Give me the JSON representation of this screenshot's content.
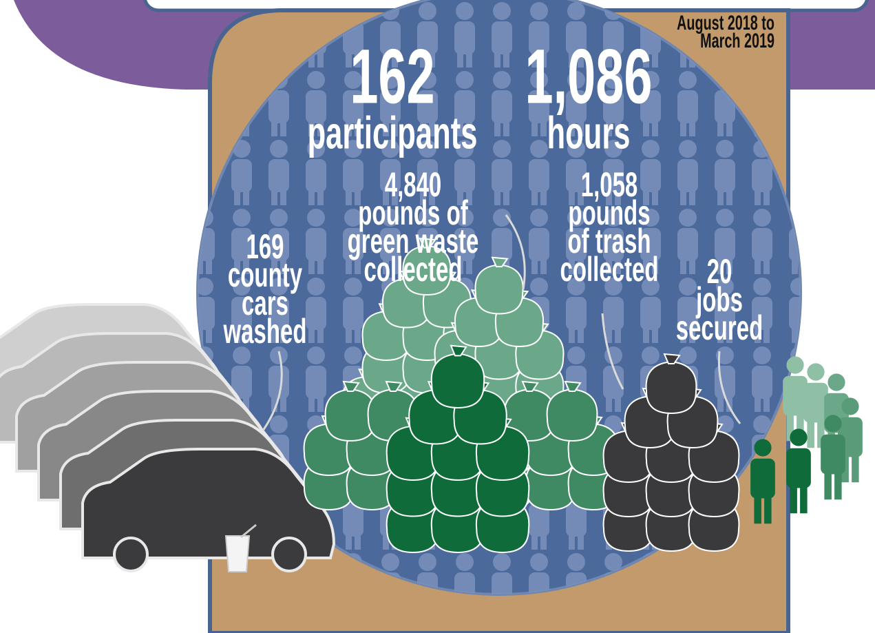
{
  "period": {
    "lines": [
      "August 2018 to",
      "March 2019"
    ]
  },
  "headline_stats": [
    {
      "number": "162",
      "label": "participants"
    },
    {
      "number": "1,086",
      "label": "hours"
    }
  ],
  "stats": [
    {
      "number": "4,840",
      "label_lines": [
        "pounds of",
        "green waste",
        "collected"
      ]
    },
    {
      "number": "1,058",
      "label_lines": [
        "pounds",
        "of trash",
        "collected"
      ]
    },
    {
      "number": "169",
      "label_lines": [
        "county",
        "cars",
        "washed"
      ]
    },
    {
      "number": "20",
      "label_lines": [
        "jobs",
        "secured"
      ]
    }
  ]
}
